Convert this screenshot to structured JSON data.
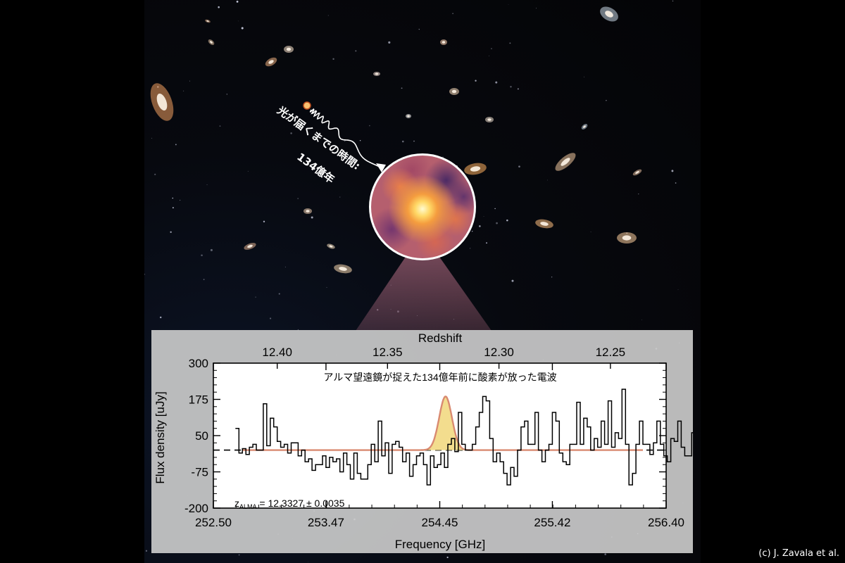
{
  "annotation": {
    "light_travel": "光が届くまでの時間:",
    "years": "134億年"
  },
  "credit": "(c) J. Zavala et al.",
  "chart_data": {
    "type": "line",
    "title": "アルマ望遠鏡が捉えた134億年前に酸素が放った電波",
    "xlabel": "Frequency [GHz]",
    "ylabel": "Flux density [uJy]",
    "top_axis_label": "Redshift",
    "xlim": [
      252.5,
      256.4
    ],
    "ylim": [
      -200,
      300
    ],
    "x_ticks": [
      "252.50",
      "253.47",
      "254.45",
      "255.42",
      "256.40"
    ],
    "y_ticks": [
      "300",
      "175",
      "50",
      "-75",
      "-200"
    ],
    "top_ticks": [
      {
        "label": "12.40",
        "freq": 253.05
      },
      {
        "label": "12.35",
        "freq": 254.0
      },
      {
        "label": "12.30",
        "freq": 254.96
      },
      {
        "label": "12.25",
        "freq": 255.92
      }
    ],
    "zero_line": 0,
    "annotation_text": "z",
    "annotation_subscript": "ALMA",
    "annotation_value": " = 12.3327 ± 0.0035",
    "series": [
      {
        "style": "step",
        "x_start": 252.69,
        "x_step": 0.03,
        "values": [
          75,
          -10,
          5,
          -15,
          10,
          20,
          0,
          0,
          160,
          15,
          110,
          80,
          30,
          10,
          20,
          -10,
          25,
          25,
          -20,
          0,
          -40,
          -30,
          -70,
          -50,
          -50,
          -20,
          -60,
          -25,
          -40,
          -30,
          -75,
          -10,
          -50,
          -100,
          -10,
          -80,
          -100,
          -100,
          -50,
          20,
          -40,
          100,
          -20,
          25,
          -80,
          20,
          30,
          10,
          -40,
          -10,
          -90,
          -50,
          -20,
          -10,
          -50,
          -120,
          -20,
          -60,
          -50,
          -10,
          -60,
          20,
          40,
          -5,
          130,
          20,
          0,
          0,
          20,
          80,
          130,
          185,
          170,
          40,
          -40,
          -10,
          -40,
          -80,
          -120,
          -60,
          -90,
          0,
          80,
          100,
          20,
          20,
          130,
          0,
          -40,
          0,
          20,
          130,
          100,
          -10,
          -40,
          -50,
          20,
          20,
          165,
          20,
          110,
          80,
          0,
          40,
          10,
          100,
          20,
          170,
          10,
          60,
          40,
          210,
          20,
          -120,
          -80,
          20,
          100,
          20,
          20,
          -15,
          25,
          100,
          20,
          -20,
          -40,
          40,
          30,
          100,
          10,
          -20,
          -20,
          60,
          0,
          -20,
          -40,
          -50,
          50,
          20
        ]
      },
      {
        "style": "gaussian_fit",
        "amplitude": 185,
        "center": 254.5,
        "sigma": 0.055
      }
    ]
  }
}
